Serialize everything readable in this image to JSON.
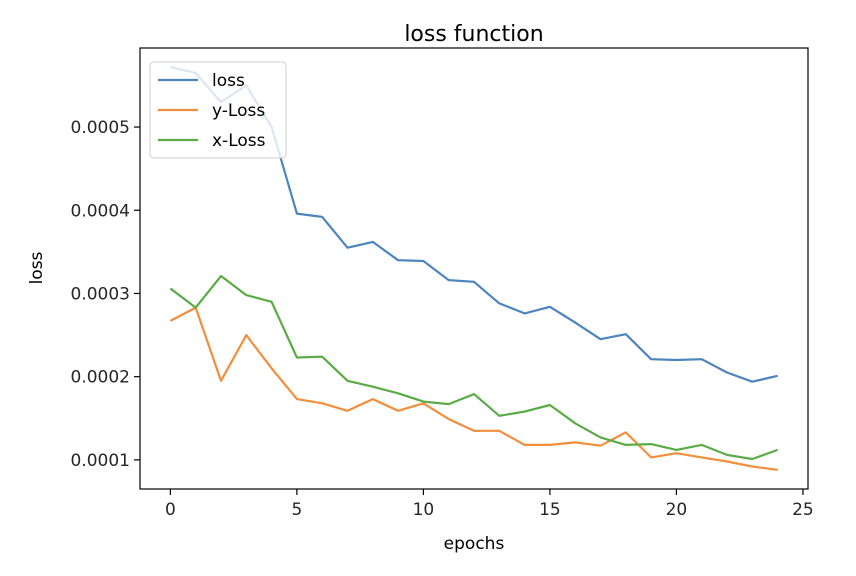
{
  "chart_data": {
    "type": "line",
    "title": "loss function",
    "xlabel": "epochs",
    "ylabel": "loss",
    "xlim": [
      -1.2,
      25.2
    ],
    "ylim": [
      6.5e-05,
      0.000595
    ],
    "xticks": [
      0,
      5,
      10,
      15,
      20,
      25
    ],
    "xtick_labels": [
      "0",
      "5",
      "10",
      "15",
      "20",
      "25"
    ],
    "yticks": [
      0.0001,
      0.0002,
      0.0003,
      0.0004,
      0.0005
    ],
    "ytick_labels": [
      "0.0001",
      "0.0002",
      "0.0003",
      "0.0004",
      "0.0005"
    ],
    "grid": false,
    "legend_position": "top-left",
    "x": [
      0,
      1,
      2,
      3,
      4,
      5,
      6,
      7,
      8,
      9,
      10,
      11,
      12,
      13,
      14,
      15,
      16,
      17,
      18,
      19,
      20,
      21,
      22,
      23,
      24
    ],
    "series": [
      {
        "name": "loss",
        "color": "#4c84bf",
        "values": [
          0.000572,
          0.000565,
          0.00053,
          0.00055,
          0.0005,
          0.000396,
          0.000392,
          0.000355,
          0.000362,
          0.00034,
          0.000339,
          0.000316,
          0.000314,
          0.000288,
          0.000276,
          0.000284,
          0.000265,
          0.000245,
          0.000251,
          0.000221,
          0.00022,
          0.000221,
          0.000205,
          0.000194,
          0.000201
        ]
      },
      {
        "name": "y-Loss",
        "color": "#f28e3c",
        "values": [
          0.000267,
          0.000283,
          0.000195,
          0.00025,
          0.00021,
          0.000173,
          0.000168,
          0.000159,
          0.000173,
          0.000159,
          0.000168,
          0.000149,
          0.000135,
          0.000135,
          0.000118,
          0.000118,
          0.000121,
          0.000117,
          0.000133,
          0.000103,
          0.000108,
          0.000103,
          9.8e-05,
          9.2e-05,
          8.8e-05
        ]
      },
      {
        "name": "x-Loss",
        "color": "#5aab46",
        "values": [
          0.000306,
          0.000283,
          0.000321,
          0.000298,
          0.00029,
          0.000223,
          0.000224,
          0.000195,
          0.000188,
          0.00018,
          0.00017,
          0.000167,
          0.000179,
          0.000153,
          0.000158,
          0.000166,
          0.000144,
          0.000127,
          0.000118,
          0.000119,
          0.000112,
          0.000118,
          0.000106,
          0.000101,
          0.000112
        ]
      }
    ]
  }
}
